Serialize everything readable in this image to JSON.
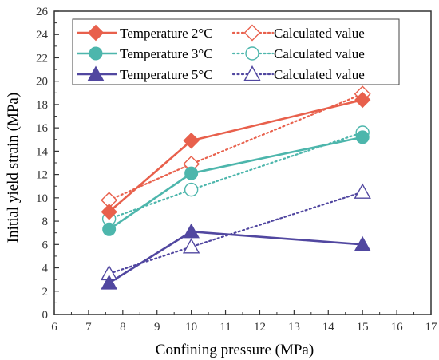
{
  "chart_data": {
    "type": "line",
    "xlabel": "Confining pressure (MPa)",
    "ylabel": "Initial yield strain (MPa)",
    "xlim": [
      6,
      17
    ],
    "ylim": [
      0,
      26
    ],
    "x_ticks": [
      6,
      7,
      8,
      9,
      10,
      11,
      12,
      13,
      14,
      15,
      16,
      17
    ],
    "y_ticks": [
      0,
      2,
      4,
      6,
      8,
      10,
      12,
      14,
      16,
      18,
      20,
      22,
      24,
      26
    ],
    "grid": false,
    "legend_position": "top-left",
    "series": [
      {
        "name": "Temperature 2°C",
        "color": "#e8604c",
        "marker": "diamond",
        "filled": true,
        "line": "solid",
        "x": [
          7.6,
          10,
          15
        ],
        "y": [
          8.8,
          14.9,
          18.4
        ]
      },
      {
        "name": "Calculated value",
        "color": "#e8604c",
        "marker": "diamond",
        "filled": false,
        "line": "dotted",
        "x": [
          7.6,
          10,
          15
        ],
        "y": [
          9.8,
          12.9,
          18.9
        ]
      },
      {
        "name": "Temperature 3°C",
        "color": "#4db6ac",
        "marker": "circle",
        "filled": true,
        "line": "solid",
        "x": [
          7.6,
          10,
          15
        ],
        "y": [
          7.3,
          12.1,
          15.2
        ]
      },
      {
        "name": "Calculated value",
        "color": "#4db6ac",
        "marker": "circle",
        "filled": false,
        "line": "dotted",
        "x": [
          7.6,
          10,
          15
        ],
        "y": [
          8.2,
          10.7,
          15.6
        ]
      },
      {
        "name": "Temperature 5°C",
        "color": "#5147a0",
        "marker": "triangle",
        "filled": true,
        "line": "solid",
        "x": [
          7.6,
          10,
          15
        ],
        "y": [
          2.7,
          7.1,
          6.0
        ]
      },
      {
        "name": "Calculated value",
        "color": "#5147a0",
        "marker": "triangle",
        "filled": false,
        "line": "dotted",
        "x": [
          7.6,
          10,
          15
        ],
        "y": [
          3.5,
          5.8,
          10.5
        ]
      }
    ]
  }
}
